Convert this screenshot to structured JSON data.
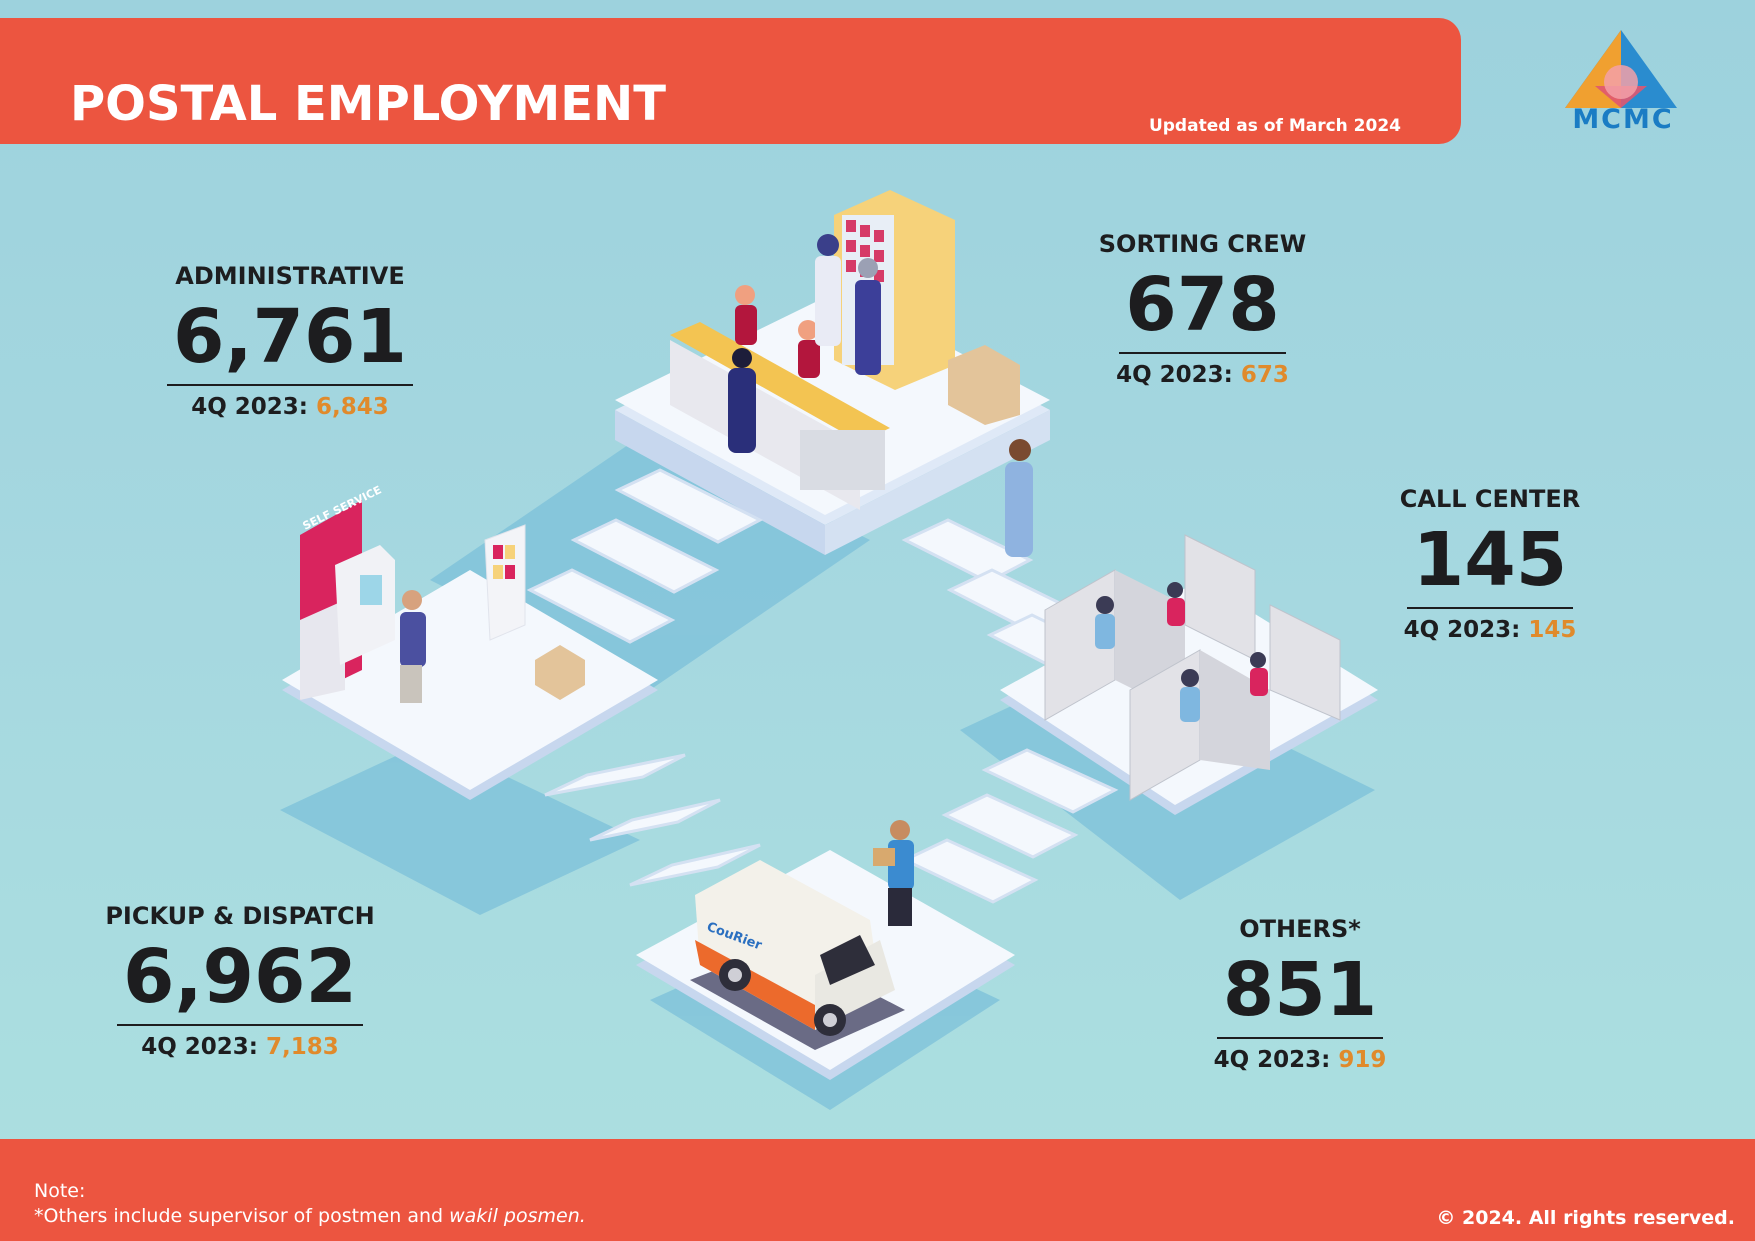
{
  "header": {
    "title": "POSTAL EMPLOYMENT",
    "updated": "Updated as of March 2024"
  },
  "logo": {
    "text": "MCMC"
  },
  "stats": {
    "administrative": {
      "label": "ADMINISTRATIVE",
      "value": "6,761",
      "prev_label": "4Q 2023:",
      "prev_value": "6,843"
    },
    "sorting_crew": {
      "label": "SORTING CREW",
      "value": "678",
      "prev_label": "4Q 2023:",
      "prev_value": "673"
    },
    "call_center": {
      "label": "CALL CENTER",
      "value": "145",
      "prev_label": "4Q 2023:",
      "prev_value": "145"
    },
    "pickup_dispatch": {
      "label": "PICKUP & DISPATCH",
      "value": "6,962",
      "prev_label": "4Q 2023:",
      "prev_value": "7,183"
    },
    "others": {
      "label": "OTHERS*",
      "value": "851",
      "prev_label": "4Q 2023:",
      "prev_value": "919"
    }
  },
  "illustration": {
    "kiosk_sign": "SELF SERVICE",
    "van_brand": "CouRier"
  },
  "footer": {
    "note_title": "Note:",
    "note_text": "*Others include supervisor of postmen and",
    "note_italic": "wakil posmen.",
    "copyright": "© 2024. All rights reserved."
  },
  "colors": {
    "header_bg": "#ec5540",
    "accent_prev": "#e08a2b",
    "logo_blue": "#1a7cc4",
    "background": "#a6d8e0"
  }
}
